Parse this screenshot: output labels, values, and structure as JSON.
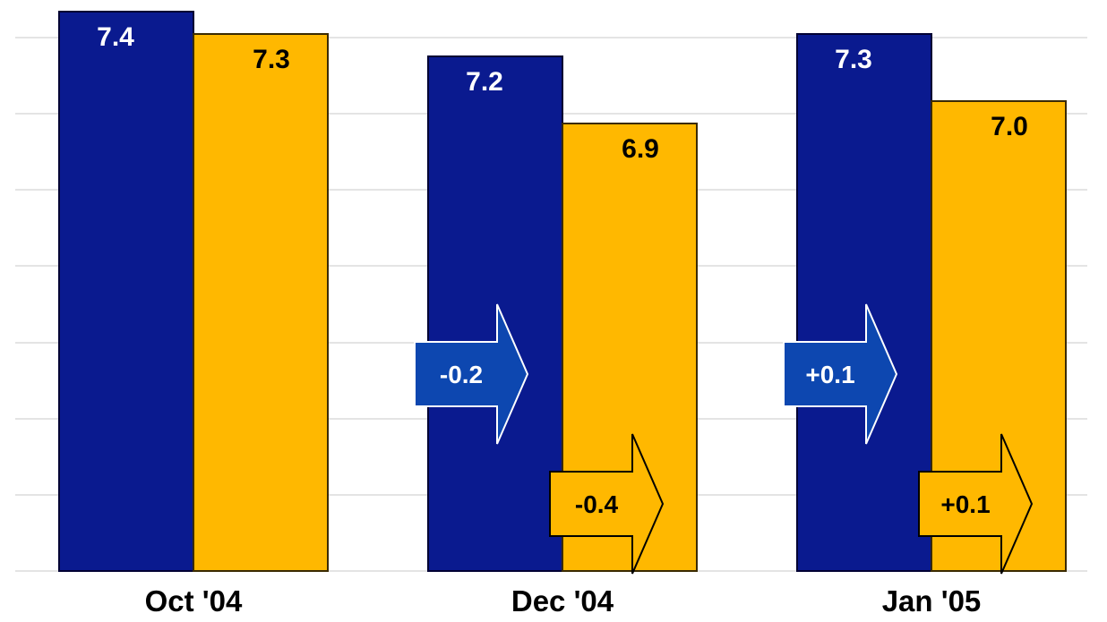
{
  "chart_data": {
    "type": "bar",
    "categories": [
      "Oct '04",
      "Dec '04",
      "Jan '05"
    ],
    "series": [
      {
        "values": [
          7.4,
          7.2,
          7.3
        ],
        "labels": [
          "7.4",
          "7.2",
          "7.3"
        ],
        "color": "#0a1a8f"
      },
      {
        "values": [
          7.3,
          6.9,
          7.0
        ],
        "labels": [
          "7.3",
          "6.9",
          "7.0"
        ],
        "color": "#ffb800"
      }
    ],
    "changes": [
      {
        "category": "Dec '04",
        "series": 0,
        "label": "-0.2"
      },
      {
        "category": "Dec '04",
        "series": 1,
        "label": "-0.4"
      },
      {
        "category": "Jan '05",
        "series": 0,
        "label": "+0.1"
      },
      {
        "category": "Jan '05",
        "series": 1,
        "label": "+0.1"
      }
    ],
    "arrow_colors": [
      "#0d47b0",
      "#ffb800"
    ],
    "grid": true,
    "legend": "none"
  }
}
